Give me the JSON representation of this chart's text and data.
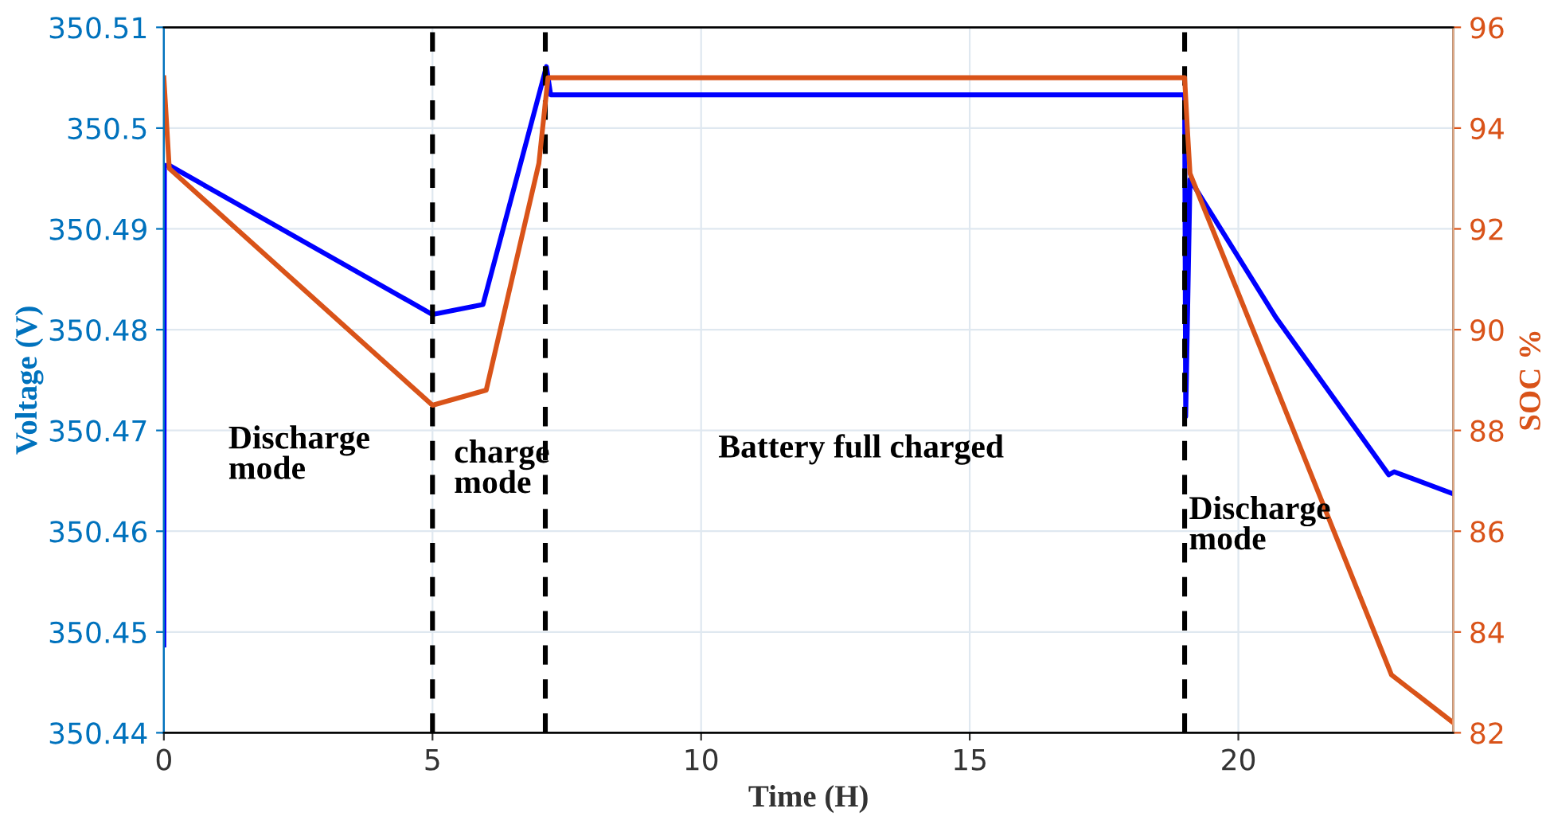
{
  "chart_data": {
    "type": "line",
    "xlabel": "Time (H)",
    "ylabel": "Voltage (V)",
    "y2label": "SOC %",
    "xlim": [
      0,
      24
    ],
    "xticks": [
      0,
      5,
      10,
      15,
      20
    ],
    "ylim": [
      350.44,
      350.51
    ],
    "yticks": [
      350.44,
      350.45,
      350.46,
      350.47,
      350.48,
      350.49,
      350.5,
      350.51
    ],
    "y2lim": [
      82,
      96
    ],
    "y2ticks": [
      82,
      84,
      86,
      88,
      90,
      92,
      94,
      96
    ],
    "grid": true,
    "line_style": "solid",
    "marker": "none",
    "series": [
      {
        "color": "#0000ff",
        "x": [
          0,
          0.01,
          0.1,
          5,
          5.94,
          7.12,
          7.2,
          19,
          19.02,
          19.1,
          20.7,
          22.8,
          22.9,
          24
        ],
        "values": [
          350.4487,
          350.4963,
          350.4963,
          350.4815,
          350.4825,
          350.5061,
          350.5033,
          350.5033,
          350.4714,
          350.4949,
          350.4812,
          350.4656,
          350.4659,
          350.4637
        ]
      },
      {
        "color": "#d95319",
        "axis": "y2",
        "x": [
          0,
          0.1,
          5,
          6,
          6.98,
          7.15,
          19,
          19.05,
          19.1,
          20.5,
          22.85,
          24
        ],
        "values": [
          95.0,
          93.2,
          88.5,
          88.8,
          93.3,
          95.0,
          95.0,
          94.0,
          93.1,
          89.4,
          83.15,
          82.2
        ]
      }
    ],
    "ref_lines": [
      {
        "axis": "x",
        "value": 5,
        "color": "#000000",
        "line_style": "dashed"
      },
      {
        "axis": "x",
        "value": 7.1,
        "color": "#000000",
        "line_style": "dashed"
      },
      {
        "axis": "x",
        "value": 19,
        "color": "#000000",
        "line_style": "dashed"
      }
    ],
    "annotations": [
      "Discharge\nmode",
      "charge\nmode",
      "Battery full charged",
      "Discharge\nmode"
    ]
  }
}
